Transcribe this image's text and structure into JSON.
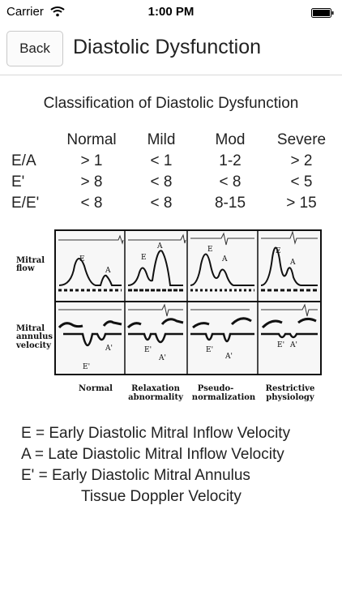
{
  "status_bar": {
    "carrier": "Carrier",
    "time": "1:00 PM",
    "wifi_icon": "wifi-icon",
    "battery_icon": "battery-icon"
  },
  "nav": {
    "back_label": "Back",
    "title": "Diastolic Dysfunction"
  },
  "classification": {
    "title": "Classification of Diastolic Dysfunction",
    "columns": [
      "Normal",
      "Mild",
      "Mod",
      "Severe"
    ],
    "rows": [
      {
        "label": "E/A",
        "values": [
          "> 1",
          "< 1",
          "1-2",
          "> 2"
        ]
      },
      {
        "label": "E'",
        "values": [
          "> 8",
          "< 8",
          "< 8",
          "< 5"
        ]
      },
      {
        "label": "E/E'",
        "values": [
          "< 8",
          "< 8",
          "8-15",
          "> 15"
        ]
      }
    ]
  },
  "figure": {
    "row_labels": {
      "mitral_flow_1": "Mitral",
      "mitral_flow_2": "flow",
      "annulus_1": "Mitral",
      "annulus_2": "annulus",
      "annulus_3": "velocity"
    },
    "column_labels": [
      {
        "line1": "Normal",
        "line2": ""
      },
      {
        "line1": "Relaxation",
        "line2": "abnormality"
      },
      {
        "line1": "Pseudo-",
        "line2": "normalization"
      },
      {
        "line1": "Restrictive",
        "line2": "physiology"
      }
    ],
    "wave_labels": {
      "E": "E",
      "A": "A",
      "E_prime": "E'",
      "A_prime": "A'"
    }
  },
  "legend": [
    "E = Early Diastolic Mitral Inflow Velocity",
    "A = Late Diastolic Mitral Inflow Velocity",
    "E' = Early Diastolic Mitral Annulus",
    "Tissue Doppler Velocity"
  ]
}
